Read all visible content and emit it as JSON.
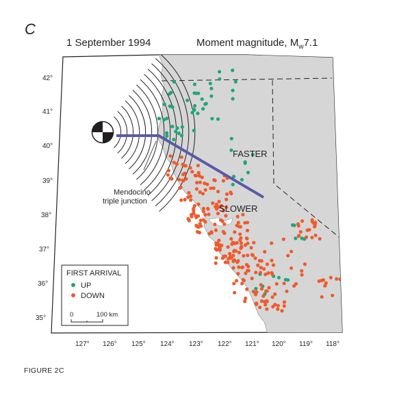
{
  "panel_letter": "C",
  "date": "1 September 1994",
  "magnitude_text": "Moment magnitude, M",
  "magnitude_sub": "w",
  "magnitude_value": "7.1",
  "figure_caption": "FIGURE 2C",
  "lat_labels": [
    "42°",
    "41°",
    "40°",
    "39°",
    "38°",
    "37°",
    "36°",
    "35°"
  ],
  "lon_labels": [
    "127°",
    "126°",
    "125°",
    "124°",
    "123°",
    "122°",
    "121°",
    "120°",
    "119°",
    "118°"
  ],
  "annotations": {
    "faster": "FASTER",
    "slower": "SLOWER",
    "triple_junction_1": "Mendocino",
    "triple_junction_2": "triple junction"
  },
  "legend": {
    "title": "FIRST ARRIVAL",
    "up": "UP",
    "down": "DOWN",
    "scale_zero": "0",
    "scale_km": "100 km"
  },
  "colors": {
    "land": "#d6d6d6",
    "ocean": "#ffffff",
    "up": "#1fa67a",
    "down": "#ee5b2c",
    "profile": "#5a5aa8",
    "wavefront": "#231f20"
  },
  "first_arrivals": {
    "up_count_approx": 70,
    "down_count_approx": 330
  }
}
